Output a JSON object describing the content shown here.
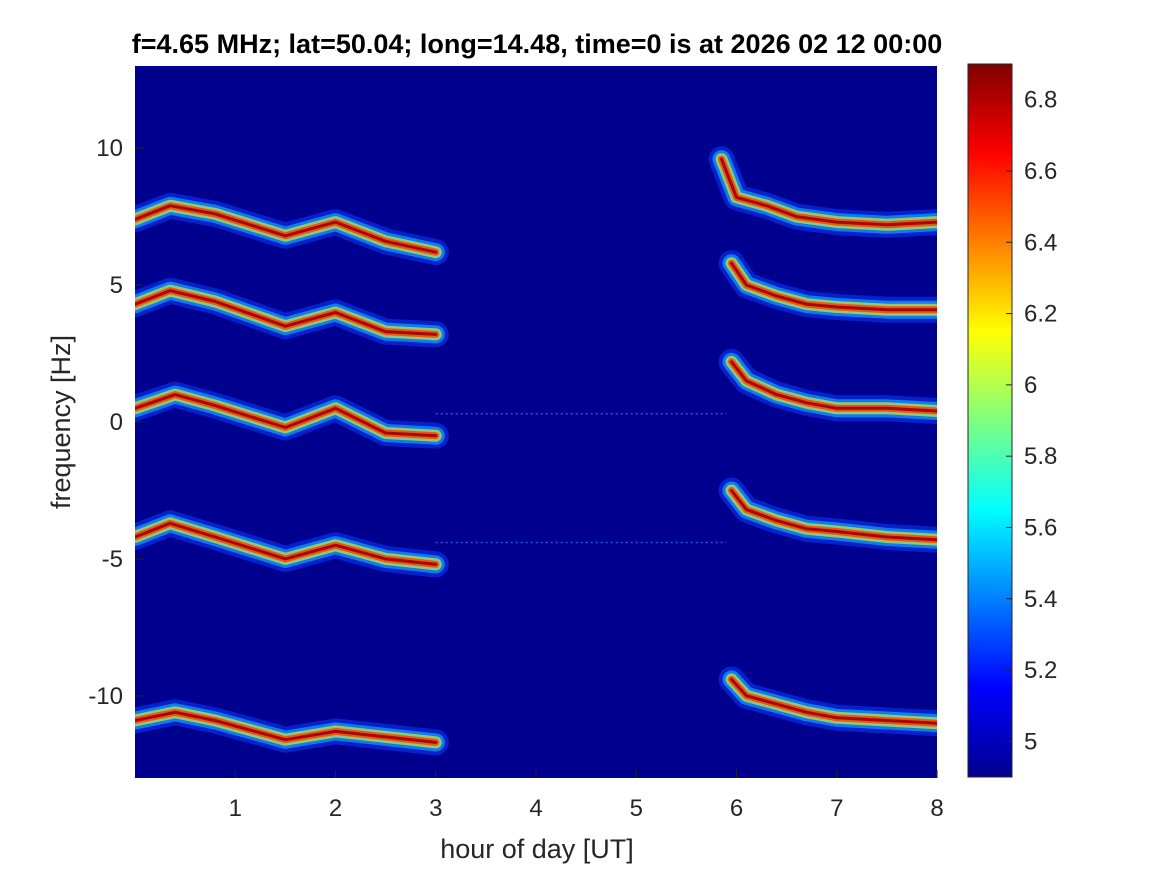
{
  "chart_data": {
    "type": "heatmap",
    "title": "f=4.65 MHz;  lat=50.04; long=14.48, time=0 is at 2026 02 12 00:00",
    "xlabel": "hour of day [UT]",
    "ylabel": "frequency [Hz]",
    "xlim": [
      0,
      8
    ],
    "ylim": [
      -13,
      13
    ],
    "xticks": [
      1,
      2,
      3,
      4,
      5,
      6,
      7,
      8
    ],
    "xtick_labels": [
      "1",
      "2",
      "3",
      "4",
      "5",
      "6",
      "7",
      "8"
    ],
    "yticks": [
      10,
      5,
      0,
      -5,
      -10
    ],
    "ytick_labels": [
      "10",
      "5",
      "0",
      "-5",
      "-10"
    ],
    "colorbar": {
      "colormap": "jet",
      "clim": [
        4.9,
        6.9
      ],
      "ticks": [
        6.8,
        6.6,
        6.4,
        6.2,
        6,
        5.8,
        5.6,
        5.4,
        5.2,
        5
      ],
      "tick_labels": [
        "6.8",
        "6.6",
        "6.4",
        "6.2",
        "6",
        "5.8",
        "5.6",
        "5.4",
        "5.2",
        "5"
      ]
    },
    "background_color": "#00008f",
    "traces": [
      {
        "segment": "early",
        "x": [
          0.0,
          0.35,
          0.8,
          1.5,
          2.0,
          2.5,
          3.0
        ],
        "y": [
          7.4,
          7.9,
          7.6,
          6.8,
          7.3,
          6.6,
          6.2
        ]
      },
      {
        "segment": "early",
        "x": [
          0.0,
          0.35,
          0.8,
          1.5,
          2.0,
          2.5,
          3.0
        ],
        "y": [
          4.3,
          4.8,
          4.4,
          3.5,
          4.0,
          3.3,
          3.2
        ]
      },
      {
        "segment": "early",
        "x": [
          0.0,
          0.4,
          0.8,
          1.5,
          2.0,
          2.5,
          3.0
        ],
        "y": [
          0.5,
          1.0,
          0.6,
          -0.2,
          0.5,
          -0.4,
          -0.5
        ]
      },
      {
        "segment": "early",
        "x": [
          0.0,
          0.35,
          0.8,
          1.5,
          2.0,
          2.5,
          3.0
        ],
        "y": [
          -4.2,
          -3.7,
          -4.2,
          -5.0,
          -4.5,
          -5.0,
          -5.2
        ]
      },
      {
        "segment": "early",
        "x": [
          0.0,
          0.4,
          0.8,
          1.5,
          2.0,
          2.5,
          3.0
        ],
        "y": [
          -10.9,
          -10.6,
          -10.9,
          -11.6,
          -11.3,
          -11.5,
          -11.7
        ]
      },
      {
        "segment": "late",
        "x": [
          5.85,
          6.0,
          6.3,
          6.6,
          7.0,
          7.5,
          8.0
        ],
        "y": [
          9.6,
          8.2,
          7.9,
          7.5,
          7.3,
          7.2,
          7.3
        ]
      },
      {
        "segment": "late",
        "x": [
          5.95,
          6.1,
          6.4,
          6.7,
          7.0,
          7.5,
          8.0
        ],
        "y": [
          5.8,
          5.0,
          4.6,
          4.3,
          4.2,
          4.1,
          4.1
        ]
      },
      {
        "segment": "late",
        "x": [
          5.95,
          6.1,
          6.4,
          6.7,
          7.0,
          7.5,
          8.0
        ],
        "y": [
          2.2,
          1.5,
          1.0,
          0.7,
          0.5,
          0.5,
          0.4
        ]
      },
      {
        "segment": "late",
        "x": [
          5.95,
          6.1,
          6.4,
          6.7,
          7.0,
          7.5,
          8.0
        ],
        "y": [
          -2.5,
          -3.2,
          -3.6,
          -3.9,
          -4.0,
          -4.2,
          -4.3
        ]
      },
      {
        "segment": "late",
        "x": [
          5.95,
          6.1,
          6.4,
          6.7,
          7.0,
          7.5,
          8.0
        ],
        "y": [
          -9.4,
          -10.0,
          -10.3,
          -10.6,
          -10.8,
          -10.9,
          -11.0
        ]
      }
    ],
    "horizontal_lines": [
      {
        "y": 0.3,
        "x_range": [
          3.0,
          5.9
        ]
      },
      {
        "y": -4.4,
        "x_range": [
          3.0,
          5.9
        ]
      }
    ]
  }
}
